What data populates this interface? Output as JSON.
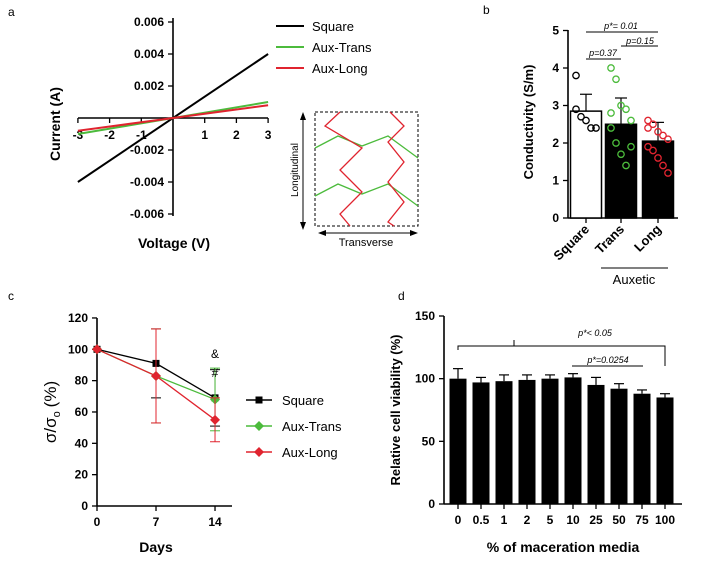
{
  "chart_data": [
    {
      "panel": "a",
      "type": "line",
      "xlabel": "Voltage (V)",
      "ylabel": "Current (A)",
      "xlim": [
        -3,
        3
      ],
      "ylim": [
        -0.006,
        0.006
      ],
      "xticks": [
        "-3",
        "-2",
        "-1",
        "1",
        "2",
        "3"
      ],
      "yticks": [
        "0.006",
        "0.004",
        "0.002",
        "-0.002",
        "-0.004",
        "-0.006"
      ],
      "legend_position": "right",
      "x": [
        -3,
        3
      ],
      "series": [
        {
          "name": "Square",
          "color": "#000000",
          "values": [
            -0.004,
            0.004
          ]
        },
        {
          "name": "Aux-Trans",
          "color": "#4cbb3c",
          "values": [
            -0.001,
            0.001
          ]
        },
        {
          "name": "Aux-Long",
          "color": "#e0242f",
          "values": [
            -0.0008,
            0.0008
          ]
        }
      ],
      "inset": {
        "vertical_label": "Longitudinal",
        "horizontal_label": "Transverse"
      }
    },
    {
      "panel": "b",
      "type": "bar",
      "ylabel": "Conductivity (S/m)",
      "ylim": [
        0,
        5
      ],
      "yticks": [
        "0",
        "1",
        "2",
        "3",
        "4",
        "5"
      ],
      "categories": [
        "Square",
        "Trans",
        "Long"
      ],
      "group_label": "Auxetic",
      "values": [
        2.85,
        2.5,
        2.05
      ],
      "errors": [
        0.45,
        0.7,
        0.5
      ],
      "bar_colors": [
        "#ffffff",
        "#000000",
        "#000000"
      ],
      "point_colors": [
        "#000000",
        "#4cbb3c",
        "#e0242f"
      ],
      "points": [
        [
          3.8,
          2.7,
          2.6,
          2.4,
          2.4,
          2.9
        ],
        [
          4.0,
          3.7,
          3.0,
          2.9,
          2.6,
          2.4,
          2.0,
          1.7,
          1.4,
          1.9,
          2.8
        ],
        [
          2.6,
          2.5,
          2.3,
          2.2,
          2.1,
          1.9,
          1.8,
          1.6,
          1.4,
          1.2,
          2.4
        ]
      ],
      "annotations": [
        "p*= 0.01",
        "p=0.37",
        "p=0.15"
      ]
    },
    {
      "panel": "c",
      "type": "line",
      "xlabel": "Days",
      "ylabel": "σ/σ",
      "ylabel_subscript": "o",
      "ylabel_unit": "(%)",
      "xlim": [
        0,
        15
      ],
      "ylim": [
        0,
        120
      ],
      "xticks": [
        "0",
        "7",
        "14"
      ],
      "yticks": [
        "0",
        "20",
        "40",
        "60",
        "80",
        "100",
        "120"
      ],
      "legend_position": "right",
      "x": [
        0,
        7,
        14
      ],
      "series": [
        {
          "name": "Square",
          "color": "#000000",
          "marker": "square",
          "values": [
            100,
            91,
            69
          ],
          "errors": [
            0,
            22,
            18
          ]
        },
        {
          "name": "Aux-Trans",
          "color": "#4cbb3c",
          "marker": "diamond",
          "values": [
            100,
            83,
            68
          ],
          "errors": [
            0,
            30,
            20
          ]
        },
        {
          "name": "Aux-Long",
          "color": "#e0242f",
          "marker": "diamond",
          "values": [
            100,
            83,
            55
          ],
          "errors": [
            0,
            30,
            14
          ]
        }
      ],
      "annotations": [
        "&",
        "#"
      ]
    },
    {
      "panel": "d",
      "type": "bar",
      "xlabel": "% of maceration media",
      "ylabel": "Relative cell viability (%)",
      "ylim": [
        0,
        150
      ],
      "yticks": [
        "0",
        "50",
        "100",
        "150"
      ],
      "categories": [
        "0",
        "0.5",
        "1",
        "2",
        "5",
        "10",
        "25",
        "50",
        "75",
        "100"
      ],
      "values": [
        100,
        97,
        98,
        99,
        100,
        101,
        95,
        92,
        88,
        85
      ],
      "errors": [
        8,
        4,
        5,
        4,
        3,
        3,
        6,
        4,
        3,
        3
      ],
      "annotations": [
        "p*< 0.05",
        "p*=0.0254"
      ]
    }
  ]
}
